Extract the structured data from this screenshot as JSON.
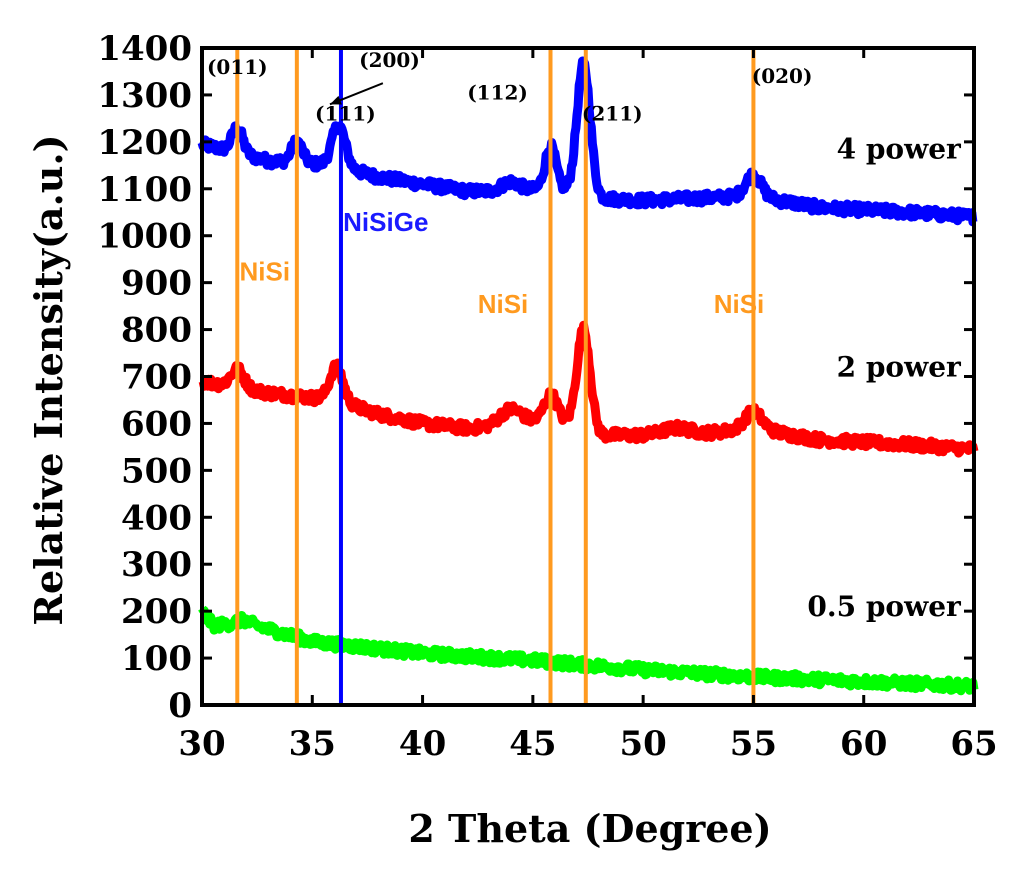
{
  "chart_data": {
    "type": "line",
    "xlabel": "2 Theta (Degree)",
    "ylabel": "Relative Intensity(a.u.)",
    "xlim": [
      30,
      65
    ],
    "ylim": [
      0,
      1400
    ],
    "x_ticks": [
      "30",
      "35",
      "40",
      "45",
      "50",
      "55",
      "60",
      "65"
    ],
    "y_ticks": [
      "0",
      "100",
      "200",
      "300",
      "400",
      "500",
      "600",
      "700",
      "800",
      "900",
      "1000",
      "1100",
      "1200",
      "1300",
      "1400"
    ],
    "series": [
      {
        "name": "4 power",
        "color": "#0000ff",
        "baseline": [
          [
            30,
            1195
          ],
          [
            33,
            1160
          ],
          [
            36,
            1150
          ],
          [
            38,
            1125
          ],
          [
            40,
            1110
          ],
          [
            42,
            1095
          ],
          [
            44,
            1095
          ],
          [
            46,
            1100
          ],
          [
            48,
            1080
          ],
          [
            50,
            1075
          ],
          [
            55,
            1085
          ],
          [
            58,
            1060
          ],
          [
            62,
            1050
          ],
          [
            65,
            1040
          ]
        ],
        "peaks": [
          [
            31.6,
            1230,
            0.25
          ],
          [
            34.3,
            1200,
            0.25
          ],
          [
            36.2,
            1235,
            0.3
          ],
          [
            44,
            1115,
            0.4
          ],
          [
            45.8,
            1190,
            0.25
          ],
          [
            47.3,
            1365,
            0.3
          ],
          [
            55,
            1130,
            0.35
          ]
        ]
      },
      {
        "name": "2 power",
        "color": "#ff0000",
        "baseline": [
          [
            30,
            690
          ],
          [
            33,
            665
          ],
          [
            36,
            650
          ],
          [
            38,
            620
          ],
          [
            40,
            600
          ],
          [
            42,
            590
          ],
          [
            44,
            595
          ],
          [
            46,
            610
          ],
          [
            48,
            575
          ],
          [
            50,
            575
          ],
          [
            53,
            580
          ],
          [
            55,
            590
          ],
          [
            58,
            565
          ],
          [
            62,
            555
          ],
          [
            65,
            545
          ]
        ],
        "peaks": [
          [
            31.6,
            715,
            0.3
          ],
          [
            36.1,
            720,
            0.3
          ],
          [
            44,
            630,
            0.5
          ],
          [
            45.8,
            660,
            0.3
          ],
          [
            47.3,
            800,
            0.3
          ],
          [
            51.5,
            590,
            0.6
          ],
          [
            55,
            625,
            0.4
          ]
        ]
      },
      {
        "name": "0.5 power",
        "color": "#00ff00",
        "baseline": [
          [
            30,
            200
          ],
          [
            30.5,
            170
          ],
          [
            32,
            175
          ],
          [
            35,
            135
          ],
          [
            40,
            110
          ],
          [
            45,
            95
          ],
          [
            50,
            75
          ],
          [
            55,
            60
          ],
          [
            60,
            50
          ],
          [
            65,
            40
          ]
        ],
        "peaks": [
          [
            31.8,
            180,
            0.3
          ]
        ]
      }
    ],
    "reference_lines": [
      {
        "x": 31.6,
        "color": "#ff9a1f",
        "phase": "NiSi"
      },
      {
        "x": 34.3,
        "color": "#ff9a1f",
        "phase": "NiSi"
      },
      {
        "x": 36.3,
        "color": "#0000ff",
        "phase": "NiSiGe"
      },
      {
        "x": 45.8,
        "color": "#ff9a1f",
        "phase": "NiSi"
      },
      {
        "x": 47.4,
        "color": "#ff9a1f",
        "phase": "NiSi"
      },
      {
        "x": 55.0,
        "color": "#ff9a1f",
        "phase": "NiSi"
      }
    ],
    "peak_annotations": [
      {
        "text": "(011)",
        "x": 31.6,
        "y": 1345
      },
      {
        "text": "(200)",
        "x": 38.5,
        "y": 1360
      },
      {
        "text": "(111)",
        "x": 36.5,
        "y": 1245
      },
      {
        "text": "(112)",
        "x": 43.4,
        "y": 1290
      },
      {
        "text": "(211)",
        "x": 48.6,
        "y": 1245
      },
      {
        "text": "(020)",
        "x": 56.3,
        "y": 1325
      }
    ],
    "phase_labels": [
      {
        "text": "NiSi",
        "x": 31.7,
        "y": 905,
        "color": "#ff9a1f"
      },
      {
        "text": "NiSiGe",
        "x": 36.4,
        "y": 1010,
        "color": "#1a1aff"
      },
      {
        "text": "NiSi",
        "x": 42.5,
        "y": 835,
        "color": "#ff9a1f"
      },
      {
        "text": "NiSi",
        "x": 53.2,
        "y": 835,
        "color": "#ff9a1f"
      }
    ],
    "series_labels": [
      {
        "text": "4 power",
        "x": 64.4,
        "y": 1165
      },
      {
        "text": "2 power",
        "x": 64.4,
        "y": 700
      },
      {
        "text": "0.5 power",
        "x": 64.4,
        "y": 190
      }
    ],
    "arrow_annotation": {
      "from": [
        38.2,
        1325
      ],
      "to": [
        35.8,
        1280
      ]
    }
  }
}
